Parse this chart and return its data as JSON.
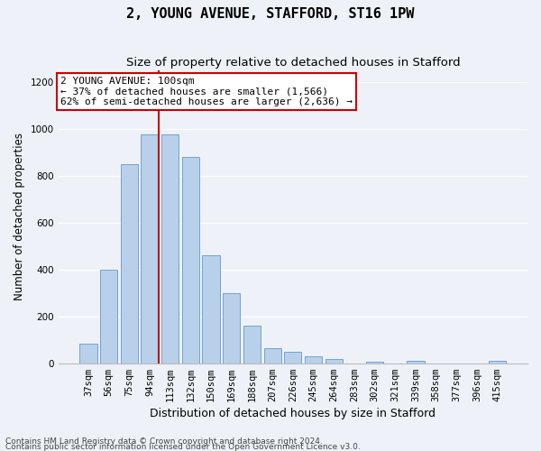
{
  "title1": "2, YOUNG AVENUE, STAFFORD, ST16 1PW",
  "title2": "Size of property relative to detached houses in Stafford",
  "xlabel": "Distribution of detached houses by size in Stafford",
  "ylabel": "Number of detached properties",
  "categories": [
    "37sqm",
    "56sqm",
    "75sqm",
    "94sqm",
    "113sqm",
    "132sqm",
    "150sqm",
    "169sqm",
    "188sqm",
    "207sqm",
    "226sqm",
    "245sqm",
    "264sqm",
    "283sqm",
    "302sqm",
    "321sqm",
    "339sqm",
    "358sqm",
    "377sqm",
    "396sqm",
    "415sqm"
  ],
  "values": [
    85,
    400,
    848,
    975,
    975,
    882,
    460,
    300,
    160,
    65,
    50,
    30,
    20,
    0,
    5,
    0,
    10,
    0,
    0,
    0,
    12
  ],
  "bar_color": "#b8d0ea",
  "bar_edge_color": "#6699cc",
  "vline_color": "#cc0000",
  "vline_x_index": 3,
  "annotation_text": "2 YOUNG AVENUE: 100sqm\n← 37% of detached houses are smaller (1,566)\n62% of semi-detached houses are larger (2,636) →",
  "annotation_box_facecolor": "#ffffff",
  "annotation_box_edgecolor": "#cc0000",
  "ylim": [
    0,
    1250
  ],
  "yticks": [
    0,
    200,
    400,
    600,
    800,
    1000,
    1200
  ],
  "footer1": "Contains HM Land Registry data © Crown copyright and database right 2024.",
  "footer2": "Contains public sector information licensed under the Open Government Licence v3.0.",
  "bg_color": "#eef2f8",
  "grid_color": "#ffffff",
  "title1_fontsize": 11,
  "title2_fontsize": 9.5,
  "xlabel_fontsize": 9,
  "ylabel_fontsize": 8.5,
  "tick_fontsize": 7.5,
  "footer_fontsize": 6.5,
  "annotation_fontsize": 8
}
